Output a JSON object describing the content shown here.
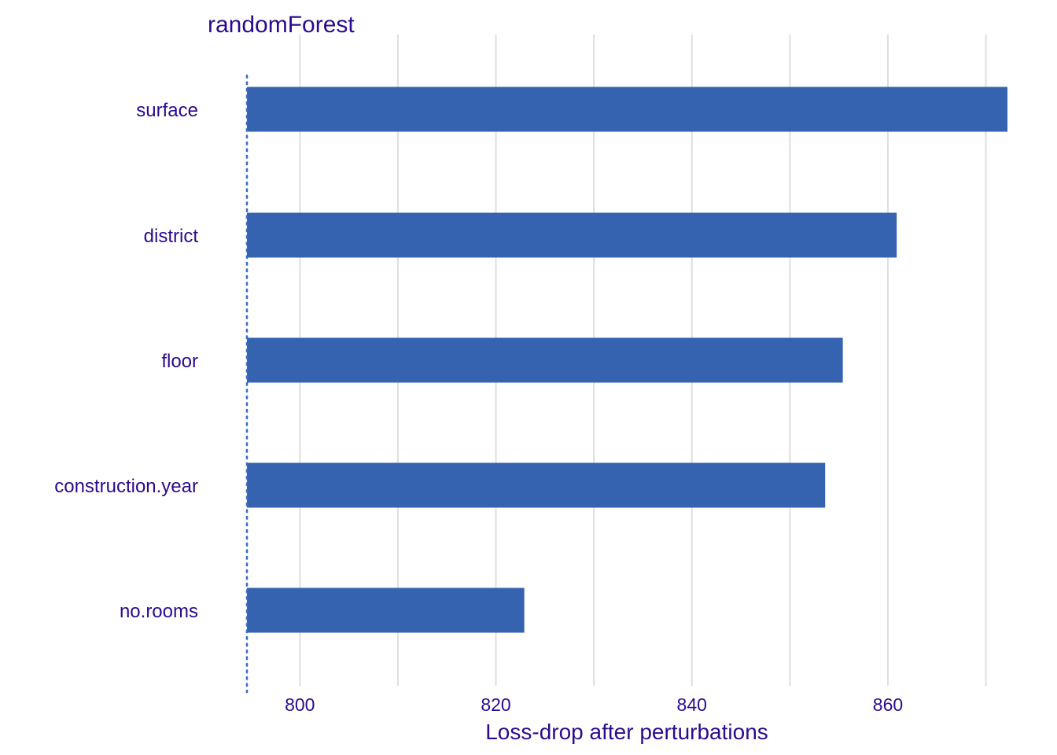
{
  "chart_data": {
    "type": "bar",
    "orientation": "horizontal",
    "title": "randomForest",
    "xlabel": "Loss-drop after perturbations",
    "ylabel": "",
    "categories": [
      "surface",
      "district",
      "floor",
      "construction.year",
      "no.rooms"
    ],
    "values": [
      872.2,
      860.9,
      855.4,
      853.6,
      822.9
    ],
    "baseline": 794.6,
    "xlim": [
      794.6,
      872.2
    ],
    "xticks": [
      800,
      820,
      840,
      860
    ],
    "xtick_labels": [
      "800",
      "820",
      "840",
      "860"
    ],
    "grid": true,
    "legend": "none"
  },
  "colors": {
    "bar": "#3563b0",
    "grid": "#dedede",
    "baseline": "#3a6fc0",
    "text": "#2c0a8c"
  }
}
